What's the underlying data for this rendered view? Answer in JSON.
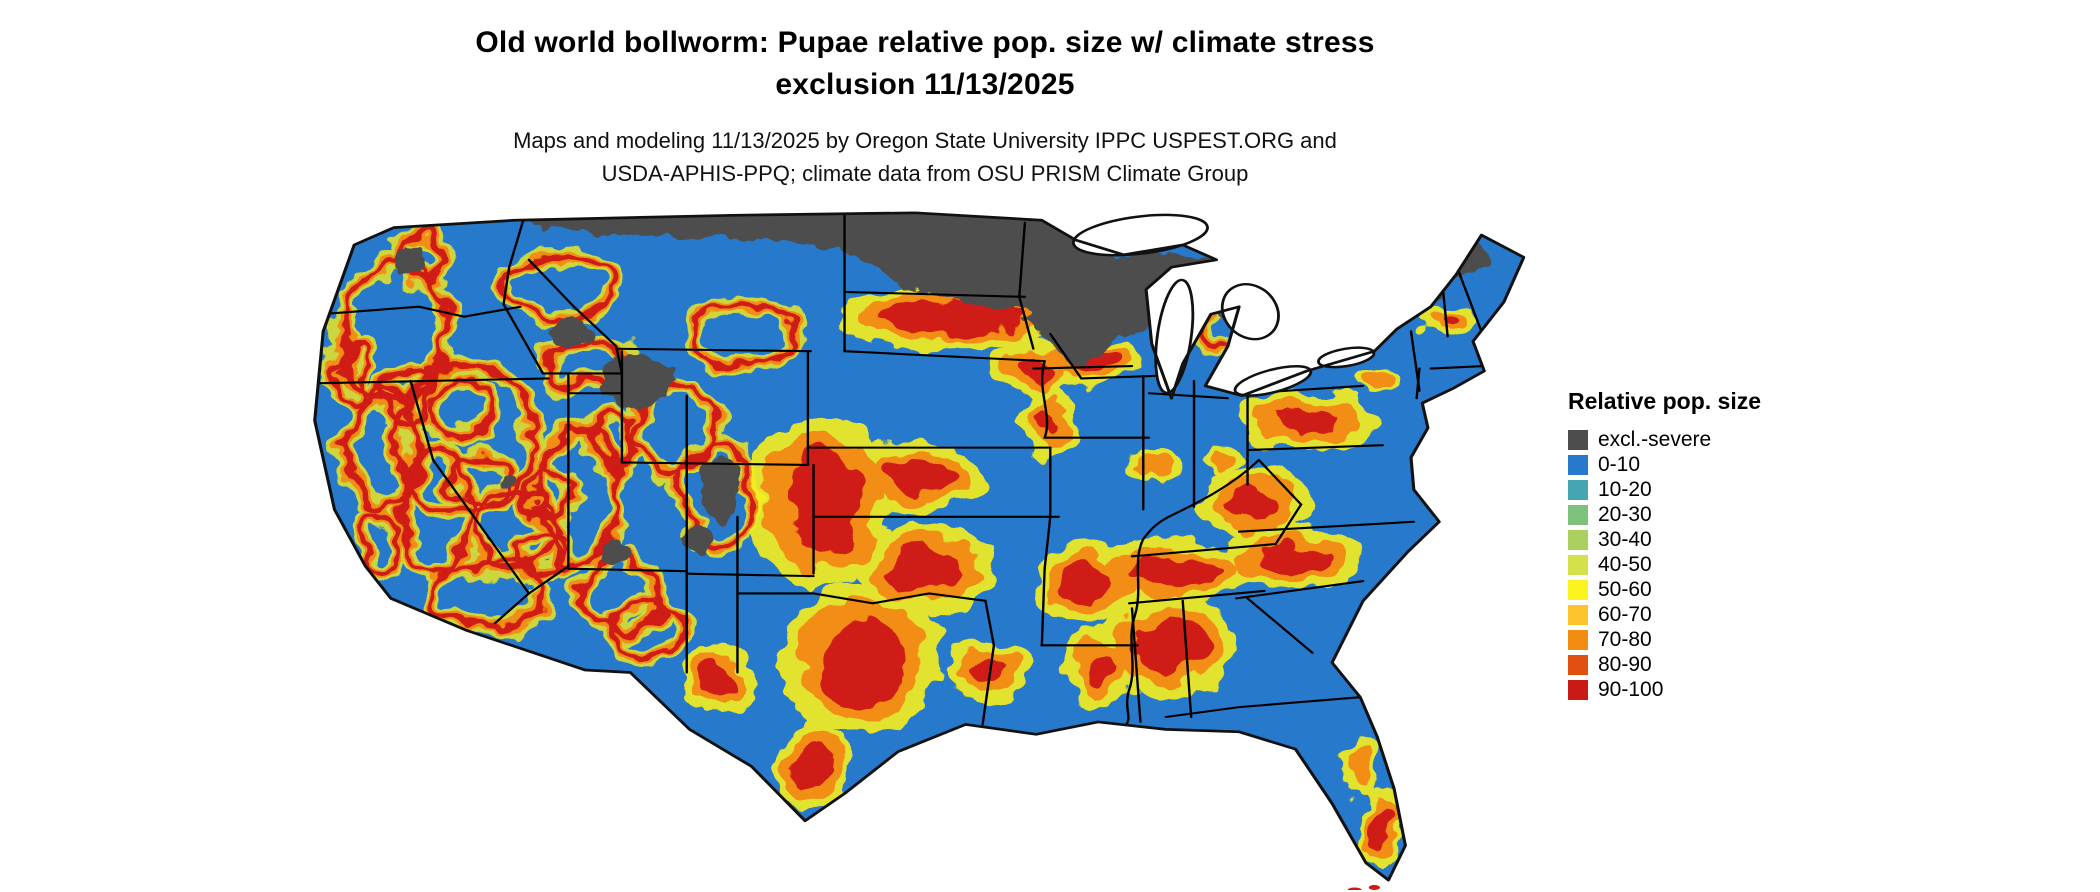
{
  "header": {
    "title_line1": "Old world bollworm: Pupae relative pop. size w/ climate stress",
    "title_line2": "exclusion 11/13/2025",
    "subtitle_line1": "Maps and modeling 11/13/2025 by Oregon State University IPPC USPEST.ORG and",
    "subtitle_line2": "USDA-APHIS-PPQ; climate data from OSU PRISM Climate Group"
  },
  "map": {
    "name": "us-conterminous-map",
    "base_color": "#2779cb",
    "exclusion_color": "#4d4d4d",
    "water_color": "#ffffff",
    "border_color": "#000000"
  },
  "legend": {
    "title": "Relative pop. size",
    "entries": [
      {
        "label": "excl.-severe",
        "color": "#4d4d4d"
      },
      {
        "label": "0-10",
        "color": "#2779cb"
      },
      {
        "label": "10-20",
        "color": "#46a5b2"
      },
      {
        "label": "20-30",
        "color": "#7cc27c"
      },
      {
        "label": "30-40",
        "color": "#aad05f"
      },
      {
        "label": "40-50",
        "color": "#d4e14b"
      },
      {
        "label": "50-60",
        "color": "#fbf41f"
      },
      {
        "label": "60-70",
        "color": "#fcc32a"
      },
      {
        "label": "70-80",
        "color": "#f28d12"
      },
      {
        "label": "80-90",
        "color": "#e1500e"
      },
      {
        "label": "90-100",
        "color": "#ca1a15"
      }
    ]
  }
}
